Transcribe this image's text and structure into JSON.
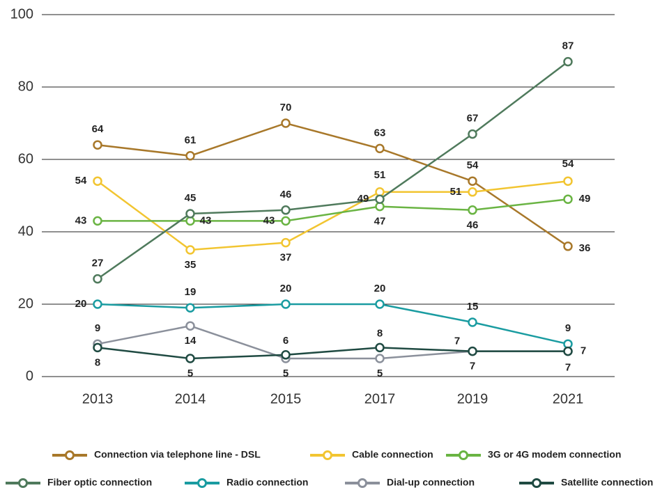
{
  "chart_data": {
    "type": "line",
    "categories": [
      "2013",
      "2014",
      "2015",
      "2017",
      "2019",
      "2021"
    ],
    "ylim": [
      0,
      100
    ],
    "yticks": [
      0,
      20,
      40,
      60,
      80,
      100
    ],
    "grid": true,
    "series": [
      {
        "name": "Connection via telephone line - DSL",
        "color": "#a8782a",
        "values": [
          64,
          61,
          70,
          63,
          54,
          36
        ]
      },
      {
        "name": "Cable connection",
        "color": "#f2c531",
        "values": [
          54,
          35,
          37,
          51,
          51,
          54
        ]
      },
      {
        "name": "3G or 4G modem connection",
        "color": "#6ab443",
        "values": [
          43,
          43,
          43,
          47,
          46,
          49
        ]
      },
      {
        "name": "Fiber optic connection",
        "color": "#4f7a5c",
        "values": [
          27,
          45,
          46,
          49,
          67,
          87
        ]
      },
      {
        "name": "Radio connection",
        "color": "#1a9ca1",
        "values": [
          20,
          19,
          20,
          20,
          15,
          9
        ]
      },
      {
        "name": "Dial-up connection",
        "color": "#8b909b",
        "values": [
          9,
          14,
          5,
          5,
          7,
          7
        ]
      },
      {
        "name": "Satellite connection",
        "color": "#1f4a42",
        "values": [
          8,
          5,
          6,
          8,
          7,
          7
        ]
      }
    ]
  }
}
